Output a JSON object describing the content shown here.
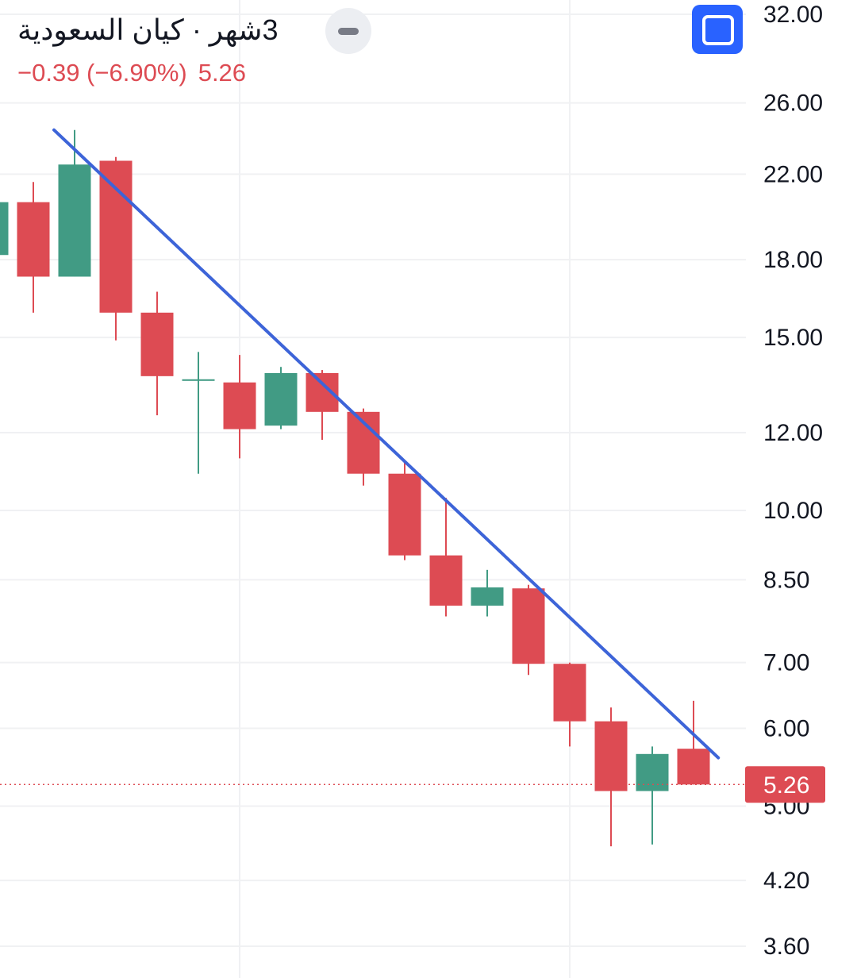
{
  "header": {
    "title": "3شهر · كيان السعودية",
    "change": "−0.39 (−6.90%)",
    "last": "5.26"
  },
  "icons": {
    "collapse": "minus-icon",
    "fullscreen": "fullscreen-icon"
  },
  "colors": {
    "up": "#419b84",
    "down": "#dd4b53",
    "trendline": "#3d64d8",
    "accent": "#2962ff",
    "grid": "#f0f1f3"
  },
  "chart_data": {
    "type": "candlestick",
    "interval": "3شهر",
    "y_scale": "log",
    "ylim": [
      3.4,
      33
    ],
    "y_ticks": [
      "32.00",
      "26.00",
      "22.00",
      "18.00",
      "15.00",
      "12.00",
      "10.00",
      "8.50",
      "7.00",
      "6.00",
      "5.00",
      "4.20",
      "3.60"
    ],
    "current_price": 5.26,
    "current_price_label": "5.26",
    "candles": [
      {
        "open": 18.2,
        "high": 20.8,
        "low": 18.2,
        "close": 20.6
      },
      {
        "open": 20.6,
        "high": 21.6,
        "low": 15.9,
        "close": 17.3
      },
      {
        "open": 17.3,
        "high": 24.4,
        "low": 17.3,
        "close": 22.5
      },
      {
        "open": 22.7,
        "high": 22.9,
        "low": 14.9,
        "close": 15.9
      },
      {
        "open": 15.9,
        "high": 16.7,
        "low": 12.5,
        "close": 13.7
      },
      {
        "open": 13.6,
        "high": 14.5,
        "low": 10.9,
        "close": 13.6
      },
      {
        "open": 13.5,
        "high": 14.4,
        "low": 11.3,
        "close": 12.1
      },
      {
        "open": 12.2,
        "high": 14.0,
        "low": 12.1,
        "close": 13.8
      },
      {
        "open": 13.8,
        "high": 13.9,
        "low": 11.8,
        "close": 12.6
      },
      {
        "open": 12.6,
        "high": 12.7,
        "low": 10.6,
        "close": 10.9
      },
      {
        "open": 10.9,
        "high": 11.2,
        "low": 8.9,
        "close": 9.0
      },
      {
        "open": 9.0,
        "high": 10.3,
        "low": 7.8,
        "close": 8.0
      },
      {
        "open": 8.0,
        "high": 8.7,
        "low": 7.8,
        "close": 8.35
      },
      {
        "open": 8.33,
        "high": 8.4,
        "low": 6.8,
        "close": 6.98
      },
      {
        "open": 6.98,
        "high": 7.0,
        "low": 5.75,
        "close": 6.1
      },
      {
        "open": 6.1,
        "high": 6.3,
        "low": 4.55,
        "close": 5.18
      },
      {
        "open": 5.18,
        "high": 5.75,
        "low": 4.57,
        "close": 5.65
      },
      {
        "open": 5.72,
        "high": 6.4,
        "low": 5.26,
        "close": 5.26
      }
    ],
    "trendline": [
      {
        "candle": 1.5,
        "price": 24.4
      },
      {
        "candle": 17.6,
        "price": 5.6
      }
    ]
  }
}
